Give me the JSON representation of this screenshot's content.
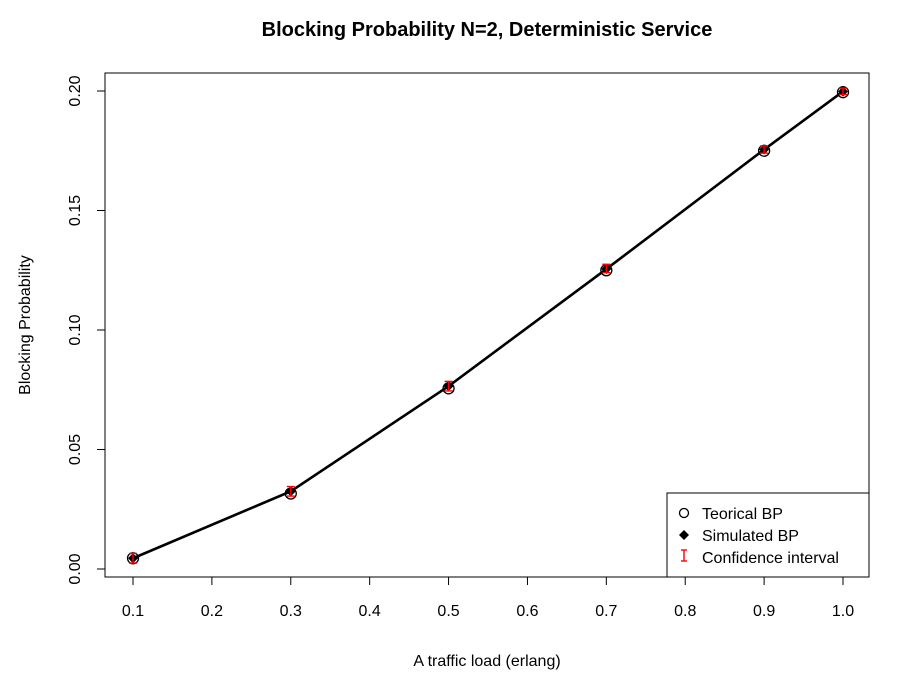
{
  "chart_data": {
    "type": "scatter",
    "title": "Blocking Probability N=2, Deterministic Service",
    "xlabel": "A traffic load (erlang)",
    "ylabel": "Blocking Probability",
    "xlim": [
      0.1,
      1.0
    ],
    "ylim": [
      0.0,
      0.2
    ],
    "x_ticks": [
      "0.1",
      "0.2",
      "0.3",
      "0.4",
      "0.5",
      "0.6",
      "0.7",
      "0.8",
      "0.9",
      "1.0"
    ],
    "y_ticks": [
      "0.00",
      "0.05",
      "0.10",
      "0.15",
      "0.20"
    ],
    "grid": false,
    "legend_position": "bottom-right",
    "x": [
      0.1,
      0.3,
      0.5,
      0.7,
      0.9,
      1.0
    ],
    "series": [
      {
        "name": "Teorical BP",
        "marker": "open-circle",
        "color": "#000000",
        "values": [
          0.0045,
          0.0316,
          0.0756,
          0.125,
          0.175,
          0.1995
        ]
      },
      {
        "name": "Simulated BP",
        "marker": "filled-diamond",
        "color": "#000000",
        "line": true,
        "values": [
          0.0045,
          0.0325,
          0.0765,
          0.1255,
          0.1755,
          0.1998
        ]
      },
      {
        "name": "Confidence interval",
        "marker": "error-bar",
        "color": "#ff0000",
        "lower": [
          0.0025,
          0.0305,
          0.0745,
          0.124,
          0.174,
          0.1985
        ],
        "upper": [
          0.0065,
          0.0345,
          0.0785,
          0.1275,
          0.177,
          0.2012
        ]
      }
    ]
  }
}
